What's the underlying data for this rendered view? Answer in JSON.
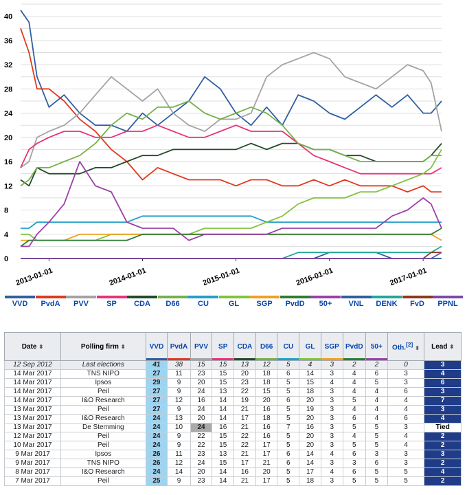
{
  "chart_data": {
    "type": "line",
    "ylim": [
      0,
      42
    ],
    "yticks": [
      0,
      4,
      8,
      12,
      16,
      20,
      24,
      28,
      32,
      36,
      40
    ],
    "xticks": [
      "2013-01-01",
      "2014-01-01",
      "2015-01-01",
      "2016-01-01",
      "2017-01-01"
    ],
    "xrange": [
      "2012-09-12",
      "2017-03-14"
    ],
    "grid": true,
    "legend": "bottom",
    "x": [
      "2012-09-12",
      "2012-10-15",
      "2012-11-15",
      "2013-01-01",
      "2013-03-01",
      "2013-05-01",
      "2013-07-01",
      "2013-09-01",
      "2013-11-01",
      "2014-01-01",
      "2014-03-01",
      "2014-05-01",
      "2014-07-01",
      "2014-09-01",
      "2014-11-01",
      "2015-01-01",
      "2015-03-01",
      "2015-05-01",
      "2015-07-01",
      "2015-09-01",
      "2015-11-01",
      "2016-01-01",
      "2016-03-01",
      "2016-05-01",
      "2016-07-01",
      "2016-09-01",
      "2016-11-01",
      "2017-01-01",
      "2017-02-01",
      "2017-03-14"
    ],
    "series": [
      {
        "name": "VVD",
        "color": "#2f5f9f",
        "values": [
          41,
          39,
          30,
          25,
          27,
          24,
          22,
          22,
          21,
          24,
          22,
          24,
          26,
          30,
          28,
          24,
          22,
          25,
          22,
          27,
          26,
          24,
          23,
          25,
          27,
          25,
          27,
          24,
          24,
          26
        ]
      },
      {
        "name": "PvdA",
        "color": "#e03a1e",
        "values": [
          38,
          34,
          28,
          28,
          26,
          23,
          21,
          18,
          16,
          13,
          15,
          14,
          13,
          13,
          13,
          12,
          13,
          13,
          12,
          12,
          13,
          12,
          13,
          12,
          12,
          12,
          11,
          12,
          11,
          11
        ]
      },
      {
        "name": "PVV",
        "color": "#a3a3a3",
        "values": [
          15,
          16,
          20,
          21,
          22,
          24,
          27,
          30,
          28,
          26,
          28,
          24,
          22,
          21,
          23,
          23,
          24,
          30,
          32,
          33,
          34,
          33,
          30,
          29,
          28,
          30,
          32,
          31,
          29,
          21
        ]
      },
      {
        "name": "SP",
        "color": "#e8327a",
        "values": [
          15,
          18,
          19,
          20,
          21,
          21,
          20,
          20,
          21,
          21,
          22,
          21,
          20,
          20,
          21,
          22,
          21,
          21,
          21,
          19,
          17,
          16,
          15,
          14,
          14,
          14,
          14,
          14,
          14,
          15
        ]
      },
      {
        "name": "CDA",
        "color": "#234a2a",
        "values": [
          13,
          12,
          15,
          14,
          14,
          14,
          15,
          15,
          16,
          17,
          17,
          18,
          18,
          18,
          18,
          18,
          19,
          18,
          19,
          19,
          18,
          18,
          17,
          17,
          16,
          16,
          16,
          16,
          17,
          19
        ]
      },
      {
        "name": "D66",
        "color": "#78b04a",
        "values": [
          12,
          13,
          15,
          15,
          16,
          17,
          19,
          22,
          24,
          23,
          25,
          25,
          26,
          24,
          23,
          24,
          25,
          24,
          22,
          19,
          18,
          18,
          17,
          16,
          16,
          16,
          16,
          16,
          17,
          17
        ]
      },
      {
        "name": "CU",
        "color": "#20a0c8",
        "values": [
          5,
          5,
          6,
          6,
          6,
          6,
          6,
          6,
          6,
          7,
          7,
          7,
          7,
          7,
          7,
          7,
          7,
          6,
          6,
          6,
          6,
          6,
          6,
          6,
          6,
          6,
          6,
          6,
          6,
          6
        ]
      },
      {
        "name": "GL",
        "color": "#82c23e",
        "values": [
          4,
          4,
          3,
          3,
          3,
          3,
          3,
          4,
          4,
          4,
          4,
          4,
          4,
          5,
          5,
          5,
          5,
          6,
          7,
          9,
          10,
          10,
          10,
          11,
          11,
          12,
          13,
          14,
          15,
          18
        ]
      },
      {
        "name": "SGP",
        "color": "#f0a020",
        "values": [
          3,
          3,
          3,
          3,
          3,
          4,
          4,
          4,
          4,
          4,
          4,
          4,
          4,
          4,
          4,
          4,
          4,
          4,
          4,
          4,
          4,
          4,
          4,
          4,
          4,
          4,
          4,
          4,
          4,
          3
        ]
      },
      {
        "name": "PvdD",
        "color": "#2e7d32",
        "values": [
          2,
          3,
          3,
          3,
          3,
          3,
          3,
          3,
          3,
          4,
          4,
          4,
          4,
          4,
          4,
          4,
          4,
          4,
          4,
          4,
          4,
          4,
          4,
          4,
          4,
          4,
          4,
          4,
          4,
          5
        ]
      },
      {
        "name": "50+",
        "color": "#9b40a8",
        "values": [
          2,
          2,
          4,
          6,
          9,
          16,
          12,
          11,
          6,
          5,
          5,
          5,
          3,
          4,
          4,
          4,
          4,
          4,
          5,
          5,
          5,
          5,
          5,
          5,
          5,
          7,
          8,
          10,
          9,
          5
        ]
      },
      {
        "name": "VNL",
        "color": "#2f5f9f",
        "values": [
          0,
          0,
          0,
          0,
          0,
          0,
          0,
          0,
          0,
          0,
          0,
          0,
          0,
          0,
          0,
          0,
          0,
          0,
          0,
          0,
          0,
          1,
          1,
          1,
          1,
          0,
          0,
          0,
          0,
          0
        ]
      },
      {
        "name": "DENK",
        "color": "#21a89a",
        "values": [
          0,
          0,
          0,
          0,
          0,
          0,
          0,
          0,
          0,
          0,
          0,
          0,
          0,
          0,
          0,
          0,
          0,
          0,
          0,
          1,
          1,
          1,
          1,
          1,
          1,
          1,
          1,
          1,
          1,
          2
        ]
      },
      {
        "name": "FvD",
        "color": "#8b3a1a",
        "values": [
          0,
          0,
          0,
          0,
          0,
          0,
          0,
          0,
          0,
          0,
          0,
          0,
          0,
          0,
          0,
          0,
          0,
          0,
          0,
          0,
          0,
          0,
          0,
          0,
          0,
          0,
          0,
          0,
          1,
          1
        ]
      },
      {
        "name": "PPNL",
        "color": "#7b4aa8",
        "values": [
          0,
          0,
          0,
          0,
          0,
          0,
          0,
          0,
          0,
          0,
          0,
          0,
          0,
          0,
          0,
          0,
          0,
          0,
          0,
          0,
          0,
          0,
          0,
          0,
          0,
          0,
          0,
          0,
          0,
          1
        ]
      }
    ]
  },
  "table": {
    "headers": {
      "date": "Date",
      "firm": "Polling firm",
      "parties": [
        "VVD",
        "PvdA",
        "PVV",
        "SP",
        "CDA",
        "D66",
        "CU",
        "GL",
        "SGP",
        "PvdD",
        "50+"
      ],
      "oth": "Oth.",
      "oth_note": "[2]",
      "lead": "Lead"
    },
    "party_colors": [
      "#2f5f9f",
      "#e03a1e",
      "#a3a3a3",
      "#e8327a",
      "#234a2a",
      "#78b04a",
      "#20a0c8",
      "#82c23e",
      "#f0a020",
      "#2e7d32",
      "#9b40a8"
    ],
    "rows": [
      {
        "date": "12 Sep 2012",
        "firm": "Last elections",
        "vals": [
          "41",
          "38",
          "15",
          "15",
          "13",
          "12",
          "5",
          "4",
          "3",
          "2",
          "2"
        ],
        "oth": "0",
        "lead": "3"
      },
      {
        "date": "14 Mar 2017",
        "firm": "TNS NIPO",
        "vals": [
          "27",
          "11",
          "23",
          "15",
          "20",
          "18",
          "6",
          "14",
          "3",
          "4",
          "6"
        ],
        "oth": "3",
        "lead": "4"
      },
      {
        "date": "14 Mar 2017",
        "firm": "Ipsos",
        "vals": [
          "29",
          "9",
          "20",
          "15",
          "23",
          "18",
          "5",
          "15",
          "4",
          "4",
          "5"
        ],
        "oth": "3",
        "lead": "6"
      },
      {
        "date": "14 Mar 2017",
        "firm": "Peil",
        "vals": [
          "27",
          "9",
          "24",
          "13",
          "22",
          "15",
          "5",
          "18",
          "3",
          "4",
          "4"
        ],
        "oth": "6",
        "lead": "3"
      },
      {
        "date": "14 Mar 2017",
        "firm": "I&O Research",
        "vals": [
          "27",
          "12",
          "16",
          "14",
          "19",
          "20",
          "6",
          "20",
          "3",
          "5",
          "4"
        ],
        "oth": "4",
        "lead": "7"
      },
      {
        "date": "13 Mar 2017",
        "firm": "Peil",
        "vals": [
          "27",
          "9",
          "24",
          "14",
          "21",
          "16",
          "5",
          "19",
          "3",
          "4",
          "4"
        ],
        "oth": "4",
        "lead": "3"
      },
      {
        "date": "13 Mar 2017",
        "firm": "I&O Research",
        "vals": [
          "24",
          "13",
          "20",
          "14",
          "17",
          "18",
          "5",
          "20",
          "3",
          "6",
          "4"
        ],
        "oth": "6",
        "lead": "4"
      },
      {
        "date": "13 Mar 2017",
        "firm": "De Stemming",
        "vals": [
          "24",
          "10",
          "24",
          "16",
          "21",
          "16",
          "7",
          "16",
          "3",
          "5",
          "5"
        ],
        "oth": "3",
        "lead": "Tied",
        "hl": 2
      },
      {
        "date": "12 Mar 2017",
        "firm": "Peil",
        "vals": [
          "24",
          "9",
          "22",
          "15",
          "22",
          "16",
          "5",
          "20",
          "3",
          "4",
          "5"
        ],
        "oth": "4",
        "lead": "2"
      },
      {
        "date": "10 Mar 2017",
        "firm": "Peil",
        "vals": [
          "24",
          "9",
          "22",
          "15",
          "22",
          "17",
          "5",
          "20",
          "3",
          "5",
          "5"
        ],
        "oth": "4",
        "lead": "2"
      },
      {
        "date": "9 Mar 2017",
        "firm": "Ipsos",
        "vals": [
          "26",
          "11",
          "23",
          "13",
          "21",
          "17",
          "6",
          "14",
          "4",
          "6",
          "3"
        ],
        "oth": "3",
        "lead": "3"
      },
      {
        "date": "9 Mar 2017",
        "firm": "TNS NIPO",
        "vals": [
          "26",
          "12",
          "24",
          "15",
          "17",
          "21",
          "6",
          "14",
          "3",
          "3",
          "6"
        ],
        "oth": "3",
        "lead": "2"
      },
      {
        "date": "8 Mar 2017",
        "firm": "I&O Research",
        "vals": [
          "24",
          "14",
          "20",
          "14",
          "16",
          "20",
          "5",
          "17",
          "4",
          "6",
          "5"
        ],
        "oth": "5",
        "lead": "4"
      },
      {
        "date": "7 Mar 2017",
        "firm": "Peil",
        "vals": [
          "25",
          "9",
          "23",
          "14",
          "21",
          "17",
          "5",
          "18",
          "3",
          "5",
          "5"
        ],
        "oth": "5",
        "lead": "2"
      }
    ]
  }
}
